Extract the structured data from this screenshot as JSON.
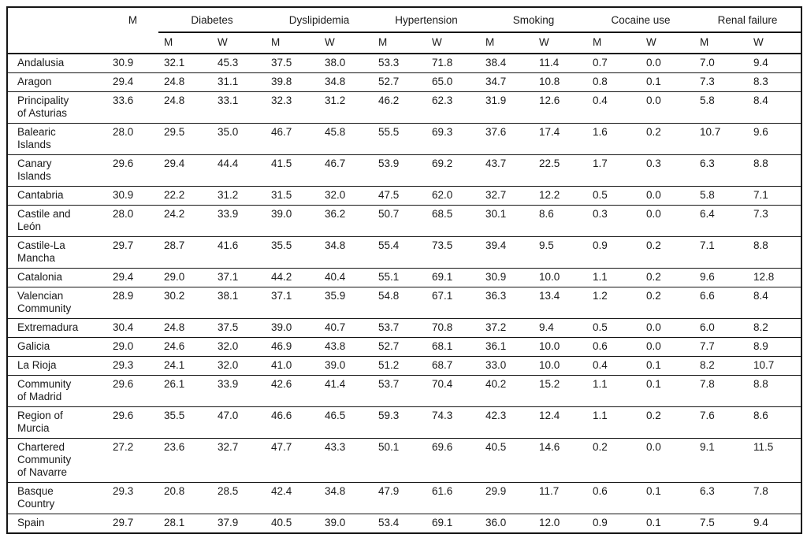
{
  "table": {
    "corner_label": "",
    "men_col_header": "M",
    "groups": [
      {
        "label": "Diabetes",
        "sub": [
          "M",
          "W"
        ]
      },
      {
        "label": "Dyslipidemia",
        "sub": [
          "M",
          "W"
        ]
      },
      {
        "label": "Hypertension",
        "sub": [
          "M",
          "W"
        ]
      },
      {
        "label": "Smoking",
        "sub": [
          "M",
          "W"
        ]
      },
      {
        "label": "Cocaine use",
        "sub": [
          "M",
          "W"
        ]
      },
      {
        "label": "Renal failure",
        "sub": [
          "M",
          "W"
        ]
      }
    ],
    "rows": [
      {
        "region": "Andalusia",
        "values": [
          "30.9",
          "32.1",
          "45.3",
          "37.5",
          "38.0",
          "53.3",
          "71.8",
          "38.4",
          "11.4",
          "0.7",
          "0.0",
          "7.0",
          "9.4"
        ]
      },
      {
        "region": "Aragon",
        "values": [
          "29.4",
          "24.8",
          "31.1",
          "39.8",
          "34.8",
          "52.7",
          "65.0",
          "34.7",
          "10.8",
          "0.8",
          "0.1",
          "7.3",
          "8.3"
        ]
      },
      {
        "region": "Principality of Asturias",
        "values": [
          "33.6",
          "24.8",
          "33.1",
          "32.3",
          "31.2",
          "46.2",
          "62.3",
          "31.9",
          "12.6",
          "0.4",
          "0.0",
          "5.8",
          "8.4"
        ]
      },
      {
        "region": "Balearic Islands",
        "values": [
          "28.0",
          "29.5",
          "35.0",
          "46.7",
          "45.8",
          "55.5",
          "69.3",
          "37.6",
          "17.4",
          "1.6",
          "0.2",
          "10.7",
          "9.6"
        ]
      },
      {
        "region": "Canary Islands",
        "values": [
          "29.6",
          "29.4",
          "44.4",
          "41.5",
          "46.7",
          "53.9",
          "69.2",
          "43.7",
          "22.5",
          "1.7",
          "0.3",
          "6.3",
          "8.8"
        ]
      },
      {
        "region": "Cantabria",
        "values": [
          "30.9",
          "22.2",
          "31.2",
          "31.5",
          "32.0",
          "47.5",
          "62.0",
          "32.7",
          "12.2",
          "0.5",
          "0.0",
          "5.8",
          "7.1"
        ]
      },
      {
        "region": "Castile and León",
        "values": [
          "28.0",
          "24.2",
          "33.9",
          "39.0",
          "36.2",
          "50.7",
          "68.5",
          "30.1",
          "8.6",
          "0.3",
          "0.0",
          "6.4",
          "7.3"
        ]
      },
      {
        "region": "Castile-La Mancha",
        "values": [
          "29.7",
          "28.7",
          "41.6",
          "35.5",
          "34.8",
          "55.4",
          "73.5",
          "39.4",
          "9.5",
          "0.9",
          "0.2",
          "7.1",
          "8.8"
        ]
      },
      {
        "region": "Catalonia",
        "values": [
          "29.4",
          "29.0",
          "37.1",
          "44.2",
          "40.4",
          "55.1",
          "69.1",
          "30.9",
          "10.0",
          "1.1",
          "0.2",
          "9.6",
          "12.8"
        ]
      },
      {
        "region": "Valencian Community",
        "values": [
          "28.9",
          "30.2",
          "38.1",
          "37.1",
          "35.9",
          "54.8",
          "67.1",
          "36.3",
          "13.4",
          "1.2",
          "0.2",
          "6.6",
          "8.4"
        ]
      },
      {
        "region": "Extremadura",
        "values": [
          "30.4",
          "24.8",
          "37.5",
          "39.0",
          "40.7",
          "53.7",
          "70.8",
          "37.2",
          "9.4",
          "0.5",
          "0.0",
          "6.0",
          "8.2"
        ]
      },
      {
        "region": "Galicia",
        "values": [
          "29.0",
          "24.6",
          "32.0",
          "46.9",
          "43.8",
          "52.7",
          "68.1",
          "36.1",
          "10.0",
          "0.6",
          "0.0",
          "7.7",
          "8.9"
        ]
      },
      {
        "region": "La Rioja",
        "values": [
          "29.3",
          "24.1",
          "32.0",
          "41.0",
          "39.0",
          "51.2",
          "68.7",
          "33.0",
          "10.0",
          "0.4",
          "0.1",
          "8.2",
          "10.7"
        ]
      },
      {
        "region": "Community of Madrid",
        "values": [
          "29.6",
          "26.1",
          "33.9",
          "42.6",
          "41.4",
          "53.7",
          "70.4",
          "40.2",
          "15.2",
          "1.1",
          "0.1",
          "7.8",
          "8.8"
        ]
      },
      {
        "region": "Region of Murcia",
        "values": [
          "29.6",
          "35.5",
          "47.0",
          "46.6",
          "46.5",
          "59.3",
          "74.3",
          "42.3",
          "12.4",
          "1.1",
          "0.2",
          "7.6",
          "8.6"
        ]
      },
      {
        "region": "Chartered Community of Navarre",
        "values": [
          "27.2",
          "23.6",
          "32.7",
          "47.7",
          "43.3",
          "50.1",
          "69.6",
          "40.5",
          "14.6",
          "0.2",
          "0.0",
          "9.1",
          "11.5"
        ]
      },
      {
        "region": "Basque Country",
        "values": [
          "29.3",
          "20.8",
          "28.5",
          "42.4",
          "34.8",
          "47.9",
          "61.6",
          "29.9",
          "11.7",
          "0.6",
          "0.1",
          "6.3",
          "7.8"
        ]
      },
      {
        "region": "Spain",
        "values": [
          "29.7",
          "28.1",
          "37.9",
          "40.5",
          "39.0",
          "53.4",
          "69.1",
          "36.0",
          "12.0",
          "0.9",
          "0.1",
          "7.5",
          "9.4"
        ]
      }
    ],
    "colors": {
      "border": "#151515",
      "text": "#1a1a1a",
      "background": "#ffffff"
    }
  }
}
